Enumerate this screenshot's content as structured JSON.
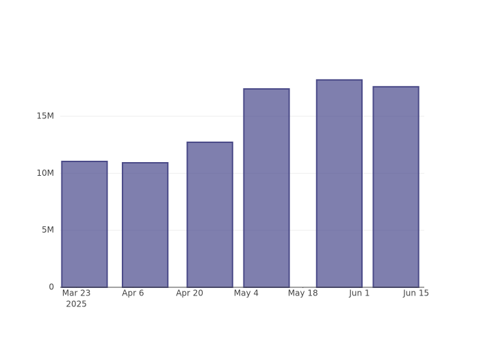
{
  "chart_data": {
    "type": "bar",
    "x": [
      "2025-03-25",
      "2025-04-09",
      "2025-04-25",
      "2025-05-09",
      "2025-05-27",
      "2025-06-10"
    ],
    "values": [
      11040000,
      10920000,
      12720000,
      17400000,
      18190000,
      17590000
    ],
    "color": "#48488c",
    "line_color": "#4a4a88",
    "xlim": [
      "2025-03-19",
      "2025-06-17"
    ],
    "xticks": [
      {
        "value": "2025-03-23",
        "label": "Mar 23"
      },
      {
        "value": "2025-04-06",
        "label": "Apr 6"
      },
      {
        "value": "2025-04-20",
        "label": "Apr 20"
      },
      {
        "value": "2025-05-04",
        "label": "May 4"
      },
      {
        "value": "2025-05-18",
        "label": "May 18"
      },
      {
        "value": "2025-06-01",
        "label": "Jun 1"
      },
      {
        "value": "2025-06-15",
        "label": "Jun 15"
      }
    ],
    "xtick_year": "2025",
    "ylim": [
      0,
      19200000
    ],
    "yticks": [
      0,
      {
        "value": 5000000,
        "label": "5M"
      },
      {
        "value": 10000000,
        "label": "10M"
      },
      {
        "value": 15000000,
        "label": "15M"
      }
    ],
    "grid": true
  }
}
